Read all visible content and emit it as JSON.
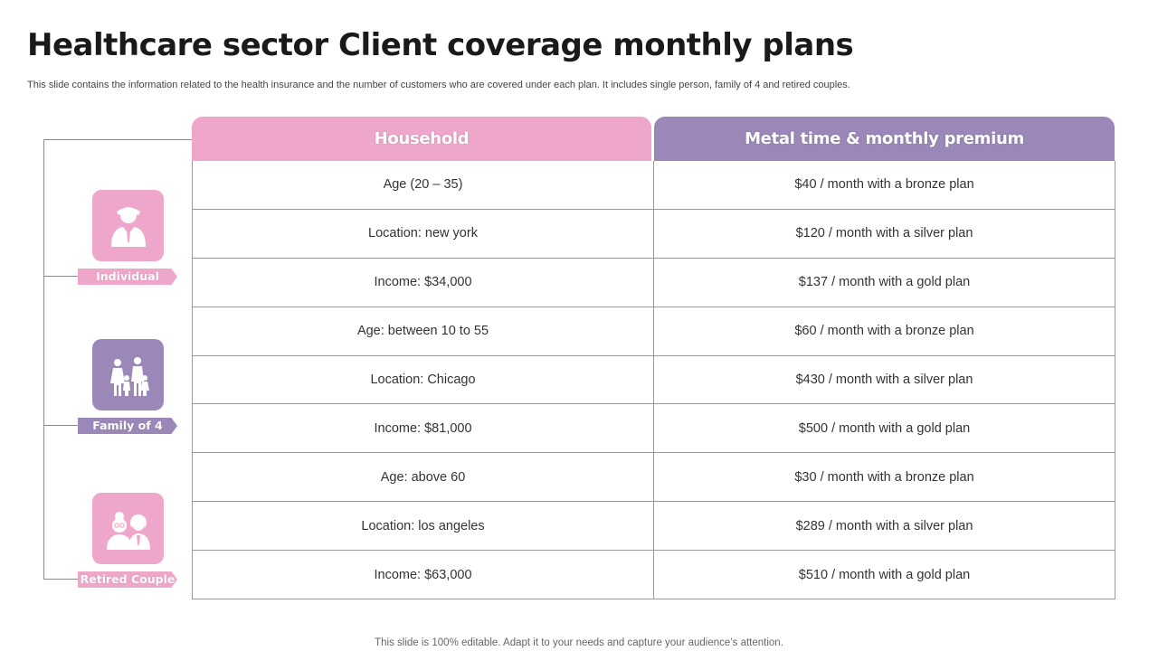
{
  "slide": {
    "title": "Healthcare sector Client coverage monthly plans",
    "subtitle": "This slide contains the information related to the health insurance and the number of customers who are covered under each plan. It   includes single person, family of 4 and retired couples.",
    "footer": "This slide is 100% editable. Adapt it to your needs and capture your audience’s attention."
  },
  "colors": {
    "pink": "#efa6cb",
    "purple": "#9b88b8"
  },
  "categories": [
    {
      "label": "Individual",
      "icon": "person-icon"
    },
    {
      "label": "Family of 4",
      "icon": "family-icon"
    },
    {
      "label": "Retired Couple",
      "icon": "elderly-couple-icon"
    }
  ],
  "table": {
    "headers": {
      "household": "Household",
      "metal": "Metal time & monthly premium"
    },
    "rows": [
      {
        "household": "Age (20 – 35)",
        "premium": "$40 / month with a bronze plan"
      },
      {
        "household": "Location: new york",
        "premium": "$120 / month with a silver plan"
      },
      {
        "household": "Income: $34,000",
        "premium": "$137 / month with a gold plan"
      },
      {
        "household": "Age: between 10 to 55",
        "premium": "$60 / month with a bronze plan"
      },
      {
        "household": "Location: Chicago",
        "premium": "$430 / month with a silver plan"
      },
      {
        "household": "Income: $81,000",
        "premium": "$500 / month with a gold plan"
      },
      {
        "household": "Age: above 60",
        "premium": "$30 / month with a bronze plan"
      },
      {
        "household": "Location: los angeles",
        "premium": "$289 / month with a silver plan"
      },
      {
        "household": "Income: $63,000",
        "premium": "$510 / month with a gold plan"
      }
    ]
  }
}
